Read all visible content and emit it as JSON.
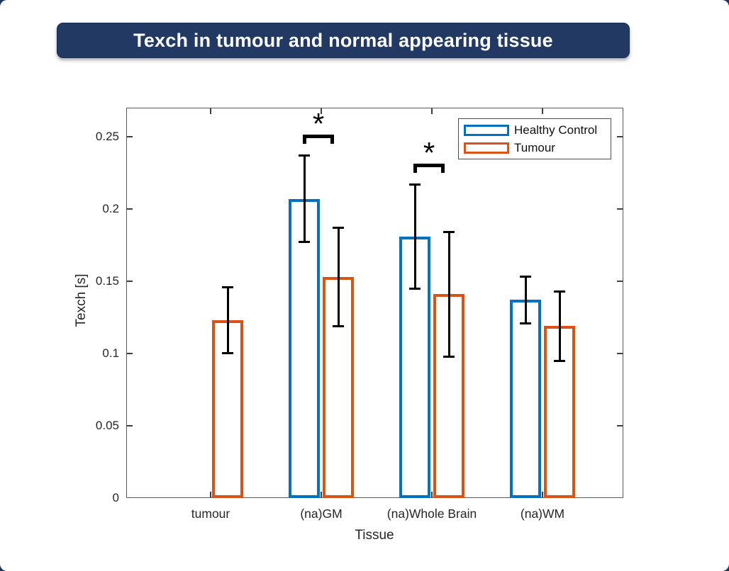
{
  "banner": {
    "title": "Texch in tumour and normal appearing tissue",
    "bg_color": "#223A63",
    "text_color": "#ffffff"
  },
  "chart_data": {
    "type": "bar",
    "title": "Texch in tumour and normal appearing tissue",
    "xlabel": "Tissue",
    "ylabel": "Texch [s]",
    "categories": [
      "tumour",
      "(na)GM",
      "(na)Whole Brain",
      "(na)WM"
    ],
    "ylim": [
      0,
      0.27
    ],
    "yticks": [
      0,
      0.05,
      0.1,
      0.15,
      0.2,
      0.25
    ],
    "ytick_labels": [
      "0",
      "0.05",
      "0.1",
      "0.15",
      "0.2",
      "0.25"
    ],
    "grid": false,
    "legend_position": "top-right-inside",
    "bar_style": "outlined-white-fill",
    "error_bar_color": "#000000",
    "series": [
      {
        "name": "Healthy Control",
        "color": "#0072BD",
        "values": [
          null,
          0.207,
          0.181,
          0.137
        ],
        "errors": [
          null,
          0.03,
          0.036,
          0.016
        ]
      },
      {
        "name": "Tumour",
        "color": "#D95319",
        "values": [
          0.123,
          0.153,
          0.141,
          0.119
        ],
        "errors": [
          0.023,
          0.034,
          0.043,
          0.024
        ]
      }
    ],
    "significance": [
      {
        "category": "(na)GM",
        "label": "*"
      },
      {
        "category": "(na)Whole Brain",
        "label": "*"
      }
    ]
  }
}
